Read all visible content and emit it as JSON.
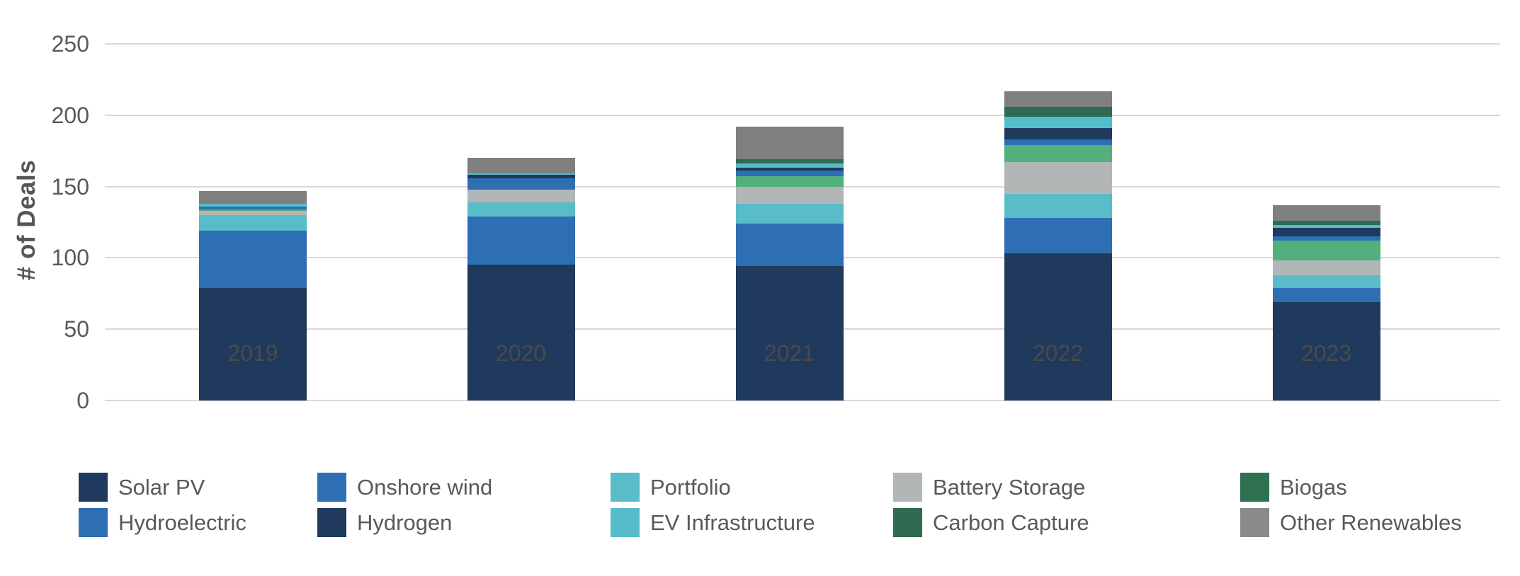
{
  "chart_data": {
    "type": "bar",
    "subtype": "stacked-vertical",
    "title": "",
    "xlabel": "",
    "ylabel": "# of Deals",
    "categories": [
      "2019",
      "2020",
      "2021",
      "2022",
      "2023"
    ],
    "yticks": [
      0,
      50,
      100,
      150,
      200,
      250
    ],
    "ylim": [
      0,
      250
    ],
    "grid": "horizontal",
    "gridline_color": "#d9d9d9",
    "axis_text_color": "#595959",
    "legend_position": "bottom",
    "legend_rows": 2,
    "legend_columns": 5,
    "series": [
      {
        "name": "Solar PV",
        "color": "#1f3a5c",
        "values": [
          79,
          95,
          94,
          103,
          69
        ]
      },
      {
        "name": "Onshore wind",
        "color": "#2d6fb2",
        "values": [
          40,
          34,
          30,
          25,
          10
        ]
      },
      {
        "name": "Portfolio",
        "color": "#58bcc9",
        "values": [
          11,
          10,
          14,
          17,
          9
        ]
      },
      {
        "name": "Battery Storage",
        "color": "#b3b6b7",
        "values": [
          3,
          9,
          12,
          22,
          10
        ]
      },
      {
        "name": "Biogas",
        "color": "#52b07d",
        "legend_color": "#2f7053",
        "values": [
          1,
          0,
          7,
          12,
          14
        ]
      },
      {
        "name": "Hydroelectric",
        "color": "#2d6fb2",
        "values": [
          2,
          8,
          4,
          4,
          3
        ]
      },
      {
        "name": "Hydrogen",
        "color": "#1f3a5c",
        "values": [
          0,
          2,
          2,
          8,
          6
        ]
      },
      {
        "name": "EV Infrastructure",
        "color": "#54bccb",
        "values": [
          2,
          1,
          3,
          8,
          2
        ]
      },
      {
        "name": "Carbon Capture",
        "color": "#2e6b50",
        "values": [
          0,
          0,
          3,
          7,
          3
        ]
      },
      {
        "name": "Other Renewables",
        "color": "#7f7f7f",
        "legend_color": "#8a8a8a",
        "values": [
          9,
          11,
          23,
          11,
          11
        ]
      }
    ],
    "totals": [
      147,
      170,
      192,
      217,
      137
    ]
  }
}
